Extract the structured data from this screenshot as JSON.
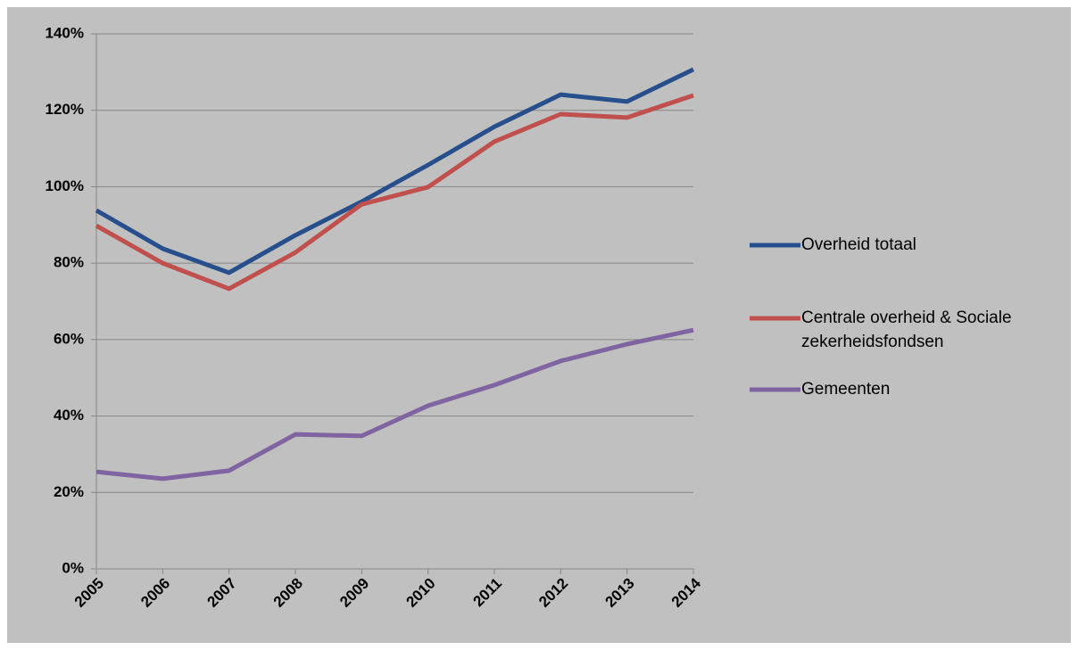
{
  "chart_data": {
    "type": "line",
    "categories": [
      "2005",
      "2006",
      "2007",
      "2008",
      "2009",
      "2010",
      "2011",
      "2012",
      "2013",
      "2014"
    ],
    "series": [
      {
        "name": "Overheid totaal",
        "color": "#264f8c",
        "values": [
          93.8,
          83.8,
          77.5,
          87.3,
          96.1,
          105.7,
          115.7,
          124.1,
          122.3,
          130.7
        ]
      },
      {
        "name": "Centrale overheid & Sociale zekerheidsfondsen",
        "color": "#c0504d",
        "values": [
          89.8,
          80,
          73.3,
          82.8,
          95.4,
          99.9,
          111.8,
          119,
          118.1,
          123.9
        ]
      },
      {
        "name": "Gemeenten",
        "color": "#8064a2",
        "values": [
          25.4,
          23.6,
          25.7,
          35.2,
          34.8,
          42.7,
          48.1,
          54.4,
          58.8,
          62.5
        ]
      }
    ],
    "ylim": [
      0,
      140
    ],
    "yticks": [
      {
        "value": 0,
        "label": "0%"
      },
      {
        "value": 20,
        "label": "20%"
      },
      {
        "value": 40,
        "label": "40%"
      },
      {
        "value": 60,
        "label": "60%"
      },
      {
        "value": 80,
        "label": "80%"
      },
      {
        "value": 100,
        "label": "100%"
      },
      {
        "value": 120,
        "label": "120%"
      },
      {
        "value": 140,
        "label": "140%"
      }
    ],
    "grid": true,
    "legend": "right"
  }
}
